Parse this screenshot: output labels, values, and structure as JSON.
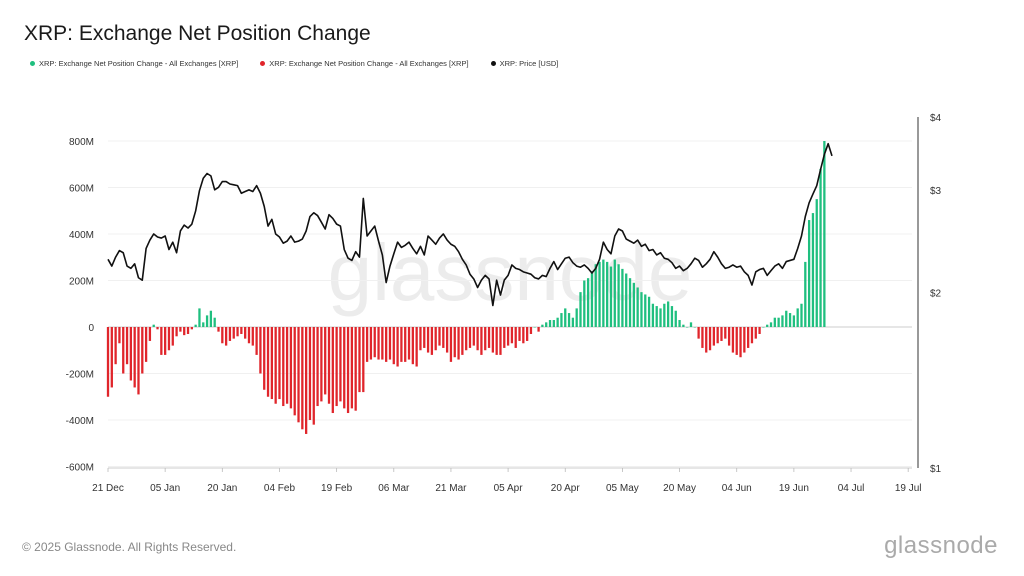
{
  "page": {
    "title": "XRP: Exchange Net Position Change",
    "copyright": "© 2025 Glassnode. All Rights Reserved.",
    "brand": "glassnode",
    "watermark": "glassnode"
  },
  "legend": [
    {
      "label": "XRP: Exchange Net Position Change - All Exchanges [XRP]",
      "color": "#1fbf7f"
    },
    {
      "label": "XRP: Exchange Net Position Change - All Exchanges [XRP]",
      "color": "#e0252b"
    },
    {
      "label": "XRP: Price [USD]",
      "color": "#111111"
    }
  ],
  "chart_data": {
    "type": "bar",
    "title": "XRP: Exchange Net Position Change",
    "colors": {
      "positive": "#1fbf7f",
      "negative": "#e0252b",
      "price": "#111111"
    },
    "y_left": {
      "range": [
        -600000000,
        800000000
      ],
      "ticks": [
        -600000000,
        -400000000,
        -200000000,
        0,
        200000000,
        400000000,
        600000000,
        800000000
      ],
      "tick_labels": [
        "-600M",
        "-400M",
        "-200M",
        "0",
        "200M",
        "400M",
        "600M",
        "800M"
      ]
    },
    "y_right": {
      "scale": "log",
      "range": [
        1,
        4
      ],
      "ticks": [
        1,
        2,
        3,
        4
      ],
      "tick_labels": [
        "$1",
        "$2",
        "$3",
        "$4"
      ]
    },
    "x_axis": {
      "start": "2024-12-21",
      "end": "2025-07-20",
      "ticks": [
        "2024-12-21",
        "2025-01-05",
        "2025-01-20",
        "2025-02-04",
        "2025-02-19",
        "2025-03-06",
        "2025-03-21",
        "2025-04-05",
        "2025-04-20",
        "2025-05-05",
        "2025-05-20",
        "2025-06-04",
        "2025-06-19",
        "2025-07-04",
        "2025-07-19"
      ],
      "tick_labels": [
        "21 Dec",
        "05 Jan",
        "20 Jan",
        "04 Feb",
        "19 Feb",
        "06 Mar",
        "21 Mar",
        "05 Apr",
        "20 Apr",
        "05 May",
        "20 May",
        "04 Jun",
        "19 Jun",
        "04 Jul",
        "19 Jul"
      ]
    },
    "net_position": {
      "name": "XRP: Exchange Net Position Change - All Exchanges [XRP]",
      "start_date": "2024-12-21",
      "values": [
        -300000000,
        -260000000,
        -160000000,
        -70000000,
        -200000000,
        -160000000,
        -230000000,
        -260000000,
        -290000000,
        -200000000,
        -150000000,
        -60000000,
        10000000,
        -10000000,
        -120000000,
        -120000000,
        -100000000,
        -80000000,
        -40000000,
        -20000000,
        -35000000,
        -30000000,
        -10000000,
        10000000,
        80000000,
        20000000,
        50000000,
        70000000,
        40000000,
        -20000000,
        -70000000,
        -80000000,
        -60000000,
        -50000000,
        -40000000,
        -30000000,
        -50000000,
        -70000000,
        -80000000,
        -120000000,
        -200000000,
        -270000000,
        -300000000,
        -310000000,
        -330000000,
        -310000000,
        -340000000,
        -330000000,
        -350000000,
        -380000000,
        -410000000,
        -440000000,
        -460000000,
        -400000000,
        -420000000,
        -340000000,
        -320000000,
        -290000000,
        -330000000,
        -370000000,
        -340000000,
        -320000000,
        -350000000,
        -370000000,
        -350000000,
        -360000000,
        -280000000,
        -280000000,
        -150000000,
        -140000000,
        -130000000,
        -140000000,
        -140000000,
        -150000000,
        -140000000,
        -160000000,
        -170000000,
        -150000000,
        -150000000,
        -140000000,
        -160000000,
        -170000000,
        -100000000,
        -90000000,
        -110000000,
        -120000000,
        -100000000,
        -80000000,
        -90000000,
        -110000000,
        -150000000,
        -130000000,
        -140000000,
        -120000000,
        -100000000,
        -90000000,
        -80000000,
        -100000000,
        -120000000,
        -100000000,
        -90000000,
        -110000000,
        -120000000,
        -120000000,
        -90000000,
        -80000000,
        -70000000,
        -90000000,
        -60000000,
        -70000000,
        -60000000,
        -30000000,
        0,
        -20000000,
        10000000,
        20000000,
        30000000,
        30000000,
        40000000,
        60000000,
        80000000,
        60000000,
        40000000,
        80000000,
        150000000,
        200000000,
        210000000,
        240000000,
        270000000,
        280000000,
        290000000,
        280000000,
        260000000,
        290000000,
        270000000,
        250000000,
        230000000,
        210000000,
        190000000,
        170000000,
        150000000,
        140000000,
        130000000,
        100000000,
        90000000,
        80000000,
        100000000,
        110000000,
        90000000,
        70000000,
        30000000,
        10000000,
        0,
        20000000,
        0,
        -50000000,
        -90000000,
        -110000000,
        -100000000,
        -80000000,
        -70000000,
        -60000000,
        -50000000,
        -80000000,
        -110000000,
        -120000000,
        -130000000,
        -110000000,
        -90000000,
        -70000000,
        -50000000,
        -30000000,
        0,
        10000000,
        20000000,
        40000000,
        40000000,
        50000000,
        70000000,
        60000000,
        50000000,
        80000000,
        100000000,
        280000000,
        460000000,
        490000000,
        550000000,
        680000000,
        800000000
      ]
    },
    "price": {
      "name": "XRP: Price [USD]",
      "start_date": "2024-12-21",
      "values": [
        2.28,
        2.22,
        2.3,
        2.36,
        2.34,
        2.22,
        2.2,
        2.24,
        2.12,
        2.1,
        2.38,
        2.46,
        2.52,
        2.49,
        2.48,
        2.5,
        2.37,
        2.44,
        2.34,
        2.55,
        2.61,
        2.58,
        2.62,
        2.76,
        2.99,
        3.14,
        3.2,
        3.17,
        3.0,
        3.03,
        3.1,
        3.1,
        3.07,
        3.06,
        3.05,
        2.96,
        2.98,
        3.0,
        2.98,
        3.05,
        2.96,
        2.81,
        2.6,
        2.67,
        2.52,
        2.49,
        2.43,
        2.45,
        2.5,
        2.44,
        2.45,
        2.47,
        2.55,
        2.7,
        2.74,
        2.71,
        2.64,
        2.57,
        2.72,
        2.68,
        2.62,
        2.6,
        2.37,
        2.29,
        2.27,
        2.35,
        2.3,
        2.9,
        2.5,
        2.55,
        2.6,
        2.45,
        2.32,
        2.08,
        2.22,
        2.33,
        2.44,
        2.39,
        2.41,
        2.44,
        2.38,
        2.33,
        2.4,
        2.32,
        2.5,
        2.46,
        2.42,
        2.48,
        2.52,
        2.46,
        2.42,
        2.4,
        2.35,
        2.28,
        2.23,
        2.15,
        2.11,
        2.04,
        2.1,
        2.14,
        2.11,
        1.9,
        2.1,
        1.98,
        2.1,
        2.14,
        2.23,
        2.2,
        2.19,
        2.17,
        2.16,
        2.15,
        2.12,
        2.11,
        2.14,
        2.13,
        2.2,
        2.26,
        2.19,
        2.24,
        2.29,
        2.3,
        2.25,
        2.22,
        2.21,
        2.23,
        2.2,
        2.16,
        2.2,
        2.28,
        2.44,
        2.37,
        2.33,
        2.5,
        2.57,
        2.55,
        2.47,
        2.45,
        2.43,
        2.46,
        2.4,
        2.42,
        2.36,
        2.37,
        2.32,
        2.34,
        2.29,
        2.28,
        2.25,
        2.2,
        2.22,
        2.18,
        2.2,
        2.24,
        2.29,
        2.27,
        2.21,
        2.24,
        2.28,
        2.35,
        2.3,
        2.24,
        2.2,
        2.21,
        2.23,
        2.21,
        2.22,
        2.17,
        2.14,
        2.06,
        2.17,
        2.19,
        2.2,
        2.14,
        2.18,
        2.22,
        2.24,
        2.2,
        2.26,
        2.27,
        2.28,
        2.38,
        2.5,
        2.7,
        2.85,
        2.95,
        3.05,
        3.25,
        3.45,
        3.6,
        3.43
      ]
    }
  }
}
